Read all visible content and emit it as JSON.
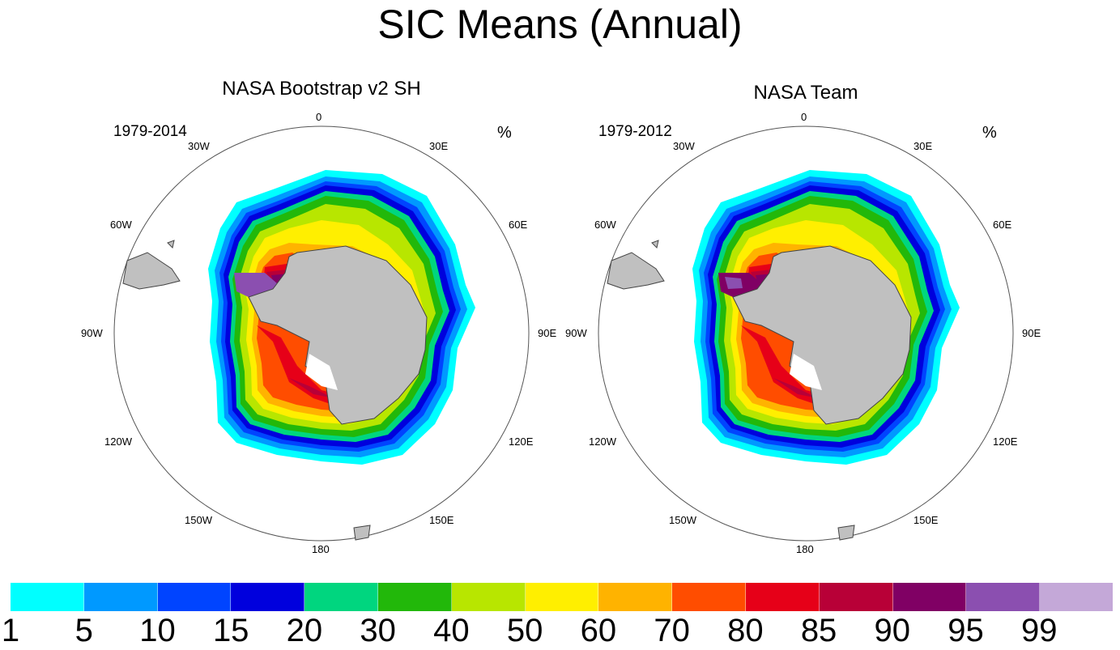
{
  "title": "SIC Means (Annual)",
  "panels": [
    {
      "title": "NASA Bootstrap v2 SH",
      "period": "1979-2014",
      "unit": "%",
      "lon_labels": [
        "0",
        "30E",
        "60E",
        "90E",
        "120E",
        "150E",
        "180",
        "150W",
        "120W",
        "90W",
        "60W",
        "30W"
      ]
    },
    {
      "title": "NASA Team",
      "period": "1979-2012",
      "unit": "%",
      "lon_labels": [
        "0",
        "30E",
        "60E",
        "90E",
        "120E",
        "150E",
        "180",
        "150W",
        "120W",
        "90W",
        "60W",
        "30W"
      ]
    }
  ],
  "colorbar": {
    "colors": [
      "#00ffff",
      "#0099ff",
      "#0044ff",
      "#0000dd",
      "#00d67f",
      "#22b80a",
      "#b8e600",
      "#ffef00",
      "#ffb300",
      "#ff4d00",
      "#e60018",
      "#b80037",
      "#800064",
      "#8b4fb0",
      "#c4a8d8"
    ],
    "labels": [
      "1",
      "5",
      "10",
      "15",
      "20",
      "30",
      "40",
      "50",
      "60",
      "70",
      "80",
      "85",
      "90",
      "95",
      "99"
    ]
  },
  "land_color": "#c0c0c0"
}
